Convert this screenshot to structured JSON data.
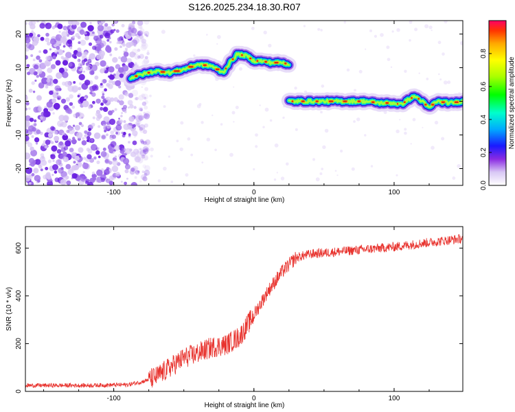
{
  "title": "S126.2025.234.18.30.R07",
  "colors": {
    "snr_line": "#e8332e",
    "frame": "#000000",
    "ridge": "#d42a1a"
  },
  "chart_data": [
    {
      "type": "heatmap",
      "xlabel": "Height of straight line (km)",
      "ylabel": "Frequency (Hz)",
      "xlim": [
        -163,
        149
      ],
      "ylim": [
        -25,
        24
      ],
      "xticks": [
        -100,
        0,
        100
      ],
      "yticks": [
        20,
        10,
        0,
        -10,
        -20
      ],
      "colorbar": {
        "label": "Normalized spectral amplitude",
        "range": [
          0,
          1
        ],
        "ticks": [
          "0.0",
          "0.2",
          "0.4",
          "0.6",
          "0.8"
        ]
      },
      "ridge": {
        "segments": [
          {
            "x": [
              -88,
              -80,
              -70,
              -60,
              -50,
              -40,
              -30,
              -22,
              -18,
              -12,
              -5,
              0,
              5,
              12,
              20,
              25
            ],
            "freq": [
              7,
              8,
              9,
              8.5,
              9.5,
              11,
              10.5,
              8.5,
              11,
              14,
              13.5,
              12,
              12,
              11.5,
              11.5,
              11
            ]
          },
          {
            "x": [
              25,
              30,
              40,
              50,
              60,
              70,
              80,
              90,
              100,
              105,
              110,
              115,
              120,
              125,
              130,
              140,
              149
            ],
            "freq": [
              0,
              0,
              0,
              0,
              0,
              0,
              0,
              -0.5,
              -0.5,
              -1,
              0.5,
              1.5,
              0,
              -2,
              0,
              -0.5,
              0
            ]
          }
        ]
      },
      "noise_region_x": [
        -163,
        -85
      ]
    },
    {
      "type": "line",
      "xlabel": "Height of straight line (km)",
      "ylabel": "SNR (10 * v/v)",
      "xlim": [
        -163,
        149
      ],
      "ylim": [
        0,
        690
      ],
      "xticks": [
        -100,
        0,
        100
      ],
      "yticks": [
        0,
        200,
        400,
        600
      ],
      "trend": {
        "x": [
          -163,
          -120,
          -90,
          -80,
          -70,
          -60,
          -50,
          -40,
          -30,
          -20,
          -10,
          0,
          10,
          20,
          30,
          40,
          60,
          80,
          100,
          120,
          149
        ],
        "y": [
          25,
          25,
          28,
          40,
          60,
          100,
          140,
          160,
          185,
          195,
          230,
          320,
          420,
          500,
          560,
          575,
          585,
          595,
          605,
          620,
          640
        ]
      }
    }
  ]
}
